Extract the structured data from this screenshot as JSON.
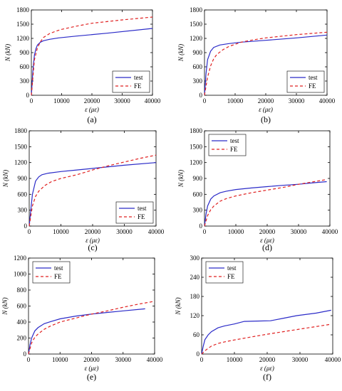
{
  "chart_data": [
    {
      "type": "line",
      "caption": "(a)",
      "xlabel": "ε (με)",
      "ylabel": "N (kN)",
      "xlim": [
        0,
        40000
      ],
      "ylim": [
        0,
        1800
      ],
      "xticks": [
        "0",
        "10000",
        "20000",
        "30000",
        "40000"
      ],
      "yticks": [
        "0",
        "300",
        "600",
        "900",
        "1200",
        "1500",
        "1800"
      ],
      "grid": false,
      "legend_position": "bottom-right",
      "series": [
        {
          "name": "test",
          "color": "#2b2bc8",
          "dash": "solid",
          "x": [
            0,
            500,
            1000,
            1500,
            2000,
            3000,
            4000,
            6000,
            9000,
            15000,
            25000,
            40000
          ],
          "y": [
            0,
            500,
            850,
            980,
            1060,
            1120,
            1150,
            1180,
            1210,
            1250,
            1310,
            1410
          ]
        },
        {
          "name": "FE",
          "color": "#e02020",
          "dash": "dashed",
          "x": [
            0,
            1000,
            2000,
            3000,
            4000,
            6000,
            8000,
            10000,
            15000,
            20000,
            30000,
            40000
          ],
          "y": [
            0,
            750,
            1000,
            1130,
            1220,
            1300,
            1350,
            1390,
            1460,
            1520,
            1590,
            1650
          ]
        }
      ]
    },
    {
      "type": "line",
      "caption": "(b)",
      "xlabel": "ε (με)",
      "ylabel": "N (kN)",
      "xlim": [
        0,
        40000
      ],
      "ylim": [
        0,
        1800
      ],
      "xticks": [
        "0",
        "10000",
        "20000",
        "30000",
        "40000"
      ],
      "yticks": [
        "0",
        "300",
        "600",
        "900",
        "1200",
        "1500",
        "1800"
      ],
      "grid": false,
      "legend_position": "bottom-right",
      "series": [
        {
          "name": "test",
          "color": "#2b2bc8",
          "dash": "solid",
          "x": [
            0,
            500,
            1000,
            2000,
            3000,
            5000,
            8000,
            12000,
            20000,
            30000,
            40000
          ],
          "y": [
            0,
            450,
            750,
            930,
            1010,
            1060,
            1090,
            1120,
            1160,
            1210,
            1270
          ]
        },
        {
          "name": "FE",
          "color": "#e02020",
          "dash": "dashed",
          "x": [
            0,
            1000,
            2000,
            3000,
            4000,
            6000,
            8000,
            12000,
            16000,
            20000,
            30000,
            40000
          ],
          "y": [
            0,
            380,
            620,
            770,
            860,
            960,
            1030,
            1120,
            1170,
            1210,
            1280,
            1330
          ]
        }
      ]
    },
    {
      "type": "line",
      "caption": "(c)",
      "xlabel": "ε (με)",
      "ylabel": "N (kN)",
      "xlim": [
        0,
        40000
      ],
      "ylim": [
        0,
        1800
      ],
      "xticks": [
        "0",
        "10000",
        "20000",
        "30000",
        "40000"
      ],
      "yticks": [
        "0",
        "300",
        "600",
        "900",
        "1200",
        "1500",
        "1800"
      ],
      "grid": false,
      "legend_position": "bottom-right",
      "series": [
        {
          "name": "test",
          "color": "#2b2bc8",
          "dash": "solid",
          "x": [
            0,
            500,
            1000,
            2000,
            3000,
            4000,
            6000,
            10000,
            15000,
            20000,
            30000,
            40000
          ],
          "y": [
            0,
            300,
            600,
            850,
            930,
            970,
            1000,
            1030,
            1060,
            1090,
            1150,
            1200
          ]
        },
        {
          "name": "FE",
          "color": "#e02020",
          "dash": "dashed",
          "x": [
            0,
            1000,
            2000,
            3000,
            5000,
            7000,
            10000,
            15000,
            20000,
            25000,
            30000,
            35000,
            40000
          ],
          "y": [
            0,
            380,
            560,
            660,
            770,
            840,
            900,
            970,
            1060,
            1140,
            1210,
            1280,
            1340
          ]
        }
      ]
    },
    {
      "type": "line",
      "caption": "(d)",
      "xlabel": "ε (με)",
      "ylabel": "N (kN)",
      "xlim": [
        0,
        40000
      ],
      "ylim": [
        0,
        1800
      ],
      "xticks": [
        "0",
        "10000",
        "20000",
        "30000",
        "40000"
      ],
      "yticks": [
        "0",
        "300",
        "600",
        "900",
        "1200",
        "1500",
        "1800"
      ],
      "grid": false,
      "legend_position": "top-left",
      "series": [
        {
          "name": "test",
          "color": "#2b2bc8",
          "dash": "solid",
          "x": [
            0,
            500,
            1000,
            2000,
            3000,
            5000,
            7000,
            10000,
            15000,
            20000,
            25000,
            30000,
            35000,
            39000
          ],
          "y": [
            0,
            230,
            380,
            510,
            570,
            630,
            660,
            690,
            720,
            745,
            770,
            790,
            820,
            840
          ]
        },
        {
          "name": "FE",
          "color": "#e02020",
          "dash": "dashed",
          "x": [
            0,
            1000,
            2000,
            3000,
            5000,
            7000,
            10000,
            15000,
            20000,
            25000,
            30000,
            35000,
            39000
          ],
          "y": [
            0,
            200,
            310,
            380,
            470,
            520,
            570,
            630,
            680,
            730,
            790,
            840,
            880
          ]
        }
      ]
    },
    {
      "type": "line",
      "caption": "(e)",
      "xlabel": "ε (με)",
      "ylabel": "N (kN)",
      "xlim": [
        0,
        40000
      ],
      "ylim": [
        0,
        1200
      ],
      "xticks": [
        "0",
        "10000",
        "20000",
        "30000",
        "40000"
      ],
      "yticks": [
        "0",
        "200",
        "400",
        "600",
        "800",
        "1000",
        "1200"
      ],
      "grid": false,
      "legend_position": "top-left",
      "series": [
        {
          "name": "test",
          "color": "#2b2bc8",
          "dash": "solid",
          "x": [
            0,
            500,
            1000,
            2000,
            3000,
            5000,
            7000,
            10000,
            15000,
            20000,
            25000,
            30000,
            37000
          ],
          "y": [
            0,
            120,
            200,
            290,
            330,
            380,
            405,
            440,
            475,
            500,
            520,
            540,
            565
          ]
        },
        {
          "name": "FE",
          "color": "#e02020",
          "dash": "dashed",
          "x": [
            0,
            1000,
            2000,
            3000,
            5000,
            7000,
            10000,
            15000,
            20000,
            25000,
            30000,
            35000,
            40000
          ],
          "y": [
            0,
            140,
            210,
            250,
            310,
            350,
            400,
            450,
            500,
            540,
            585,
            625,
            660
          ]
        }
      ]
    },
    {
      "type": "line",
      "caption": "(f)",
      "xlabel": "ε (με)",
      "ylabel": "N (kN)",
      "xlim": [
        0,
        40000
      ],
      "ylim": [
        0,
        300
      ],
      "xticks": [
        "0",
        "10000",
        "20000",
        "30000",
        "40000"
      ],
      "yticks": [
        "0",
        "60",
        "120",
        "180",
        "240",
        "300"
      ],
      "grid": false,
      "legend_position": "top-left",
      "series": [
        {
          "name": "test",
          "color": "#2b2bc8",
          "dash": "solid",
          "x": [
            0,
            500,
            1000,
            2000,
            3000,
            5000,
            7000,
            10000,
            13000,
            17000,
            21000,
            25000,
            29000,
            35000,
            39500
          ],
          "y": [
            0,
            25,
            45,
            60,
            70,
            82,
            88,
            94,
            102,
            103,
            104,
            112,
            120,
            128,
            137
          ]
        },
        {
          "name": "FE",
          "color": "#e02020",
          "dash": "dashed",
          "x": [
            0,
            1000,
            2000,
            3000,
            5000,
            7000,
            10000,
            15000,
            20000,
            25000,
            30000,
            35000,
            39500
          ],
          "y": [
            0,
            10,
            18,
            25,
            33,
            38,
            44,
            53,
            62,
            70,
            78,
            86,
            93
          ]
        }
      ]
    }
  ]
}
